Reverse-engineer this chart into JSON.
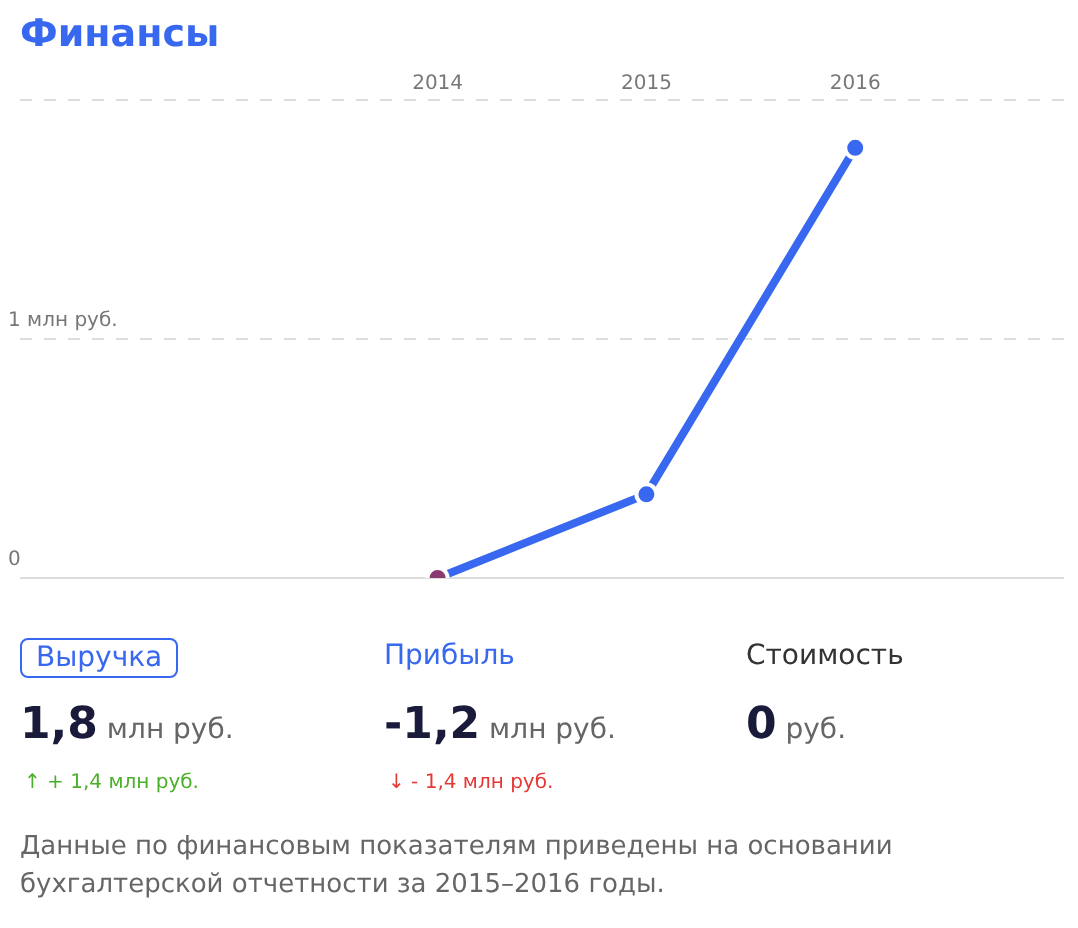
{
  "chart_data": {
    "type": "line",
    "title": "Финансы",
    "x": [
      2014,
      2015,
      2016
    ],
    "series": [
      {
        "color": "#3868f0",
        "colors": [
          "#8a3a70",
          "#3868f0",
          "#3868f0"
        ],
        "values": [
          0,
          0.35,
          1.8
        ]
      }
    ],
    "xlim": [
      2012,
      2017
    ],
    "xticks": [
      2014,
      2015,
      2016
    ],
    "ylim": [
      0,
      2
    ],
    "yticks": [
      {
        "value": 0,
        "label": "0"
      },
      {
        "value": 1,
        "label": "1 млн руб."
      },
      {
        "value": 2,
        "label": null
      }
    ],
    "grid": "y",
    "legend": false,
    "marker": "circle",
    "line_style": "solid",
    "annotations": [
      "Выручка",
      "1,8 млн руб.",
      "↑ + 1,4 млн руб.",
      "Прибыль",
      "-1,2 млн руб.",
      "↓ - 1,4 млн руб.",
      "Стоимость",
      "0 руб.",
      "Данные по финансовым показателям приведены на основании бухгалтерской отчетности за 2015–2016 годы."
    ]
  }
}
